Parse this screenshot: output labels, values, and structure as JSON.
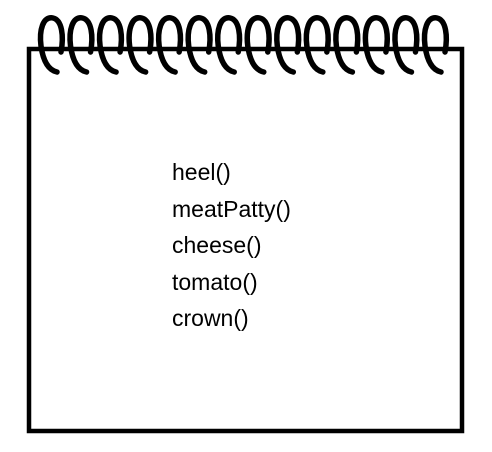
{
  "notepad": {
    "spiral_ring_count": 14,
    "ink_color": "#000000",
    "paper_color": "#ffffff",
    "lines": [
      "heel()",
      "meatPatty()",
      "cheese()",
      "tomato()",
      "crown()"
    ]
  }
}
